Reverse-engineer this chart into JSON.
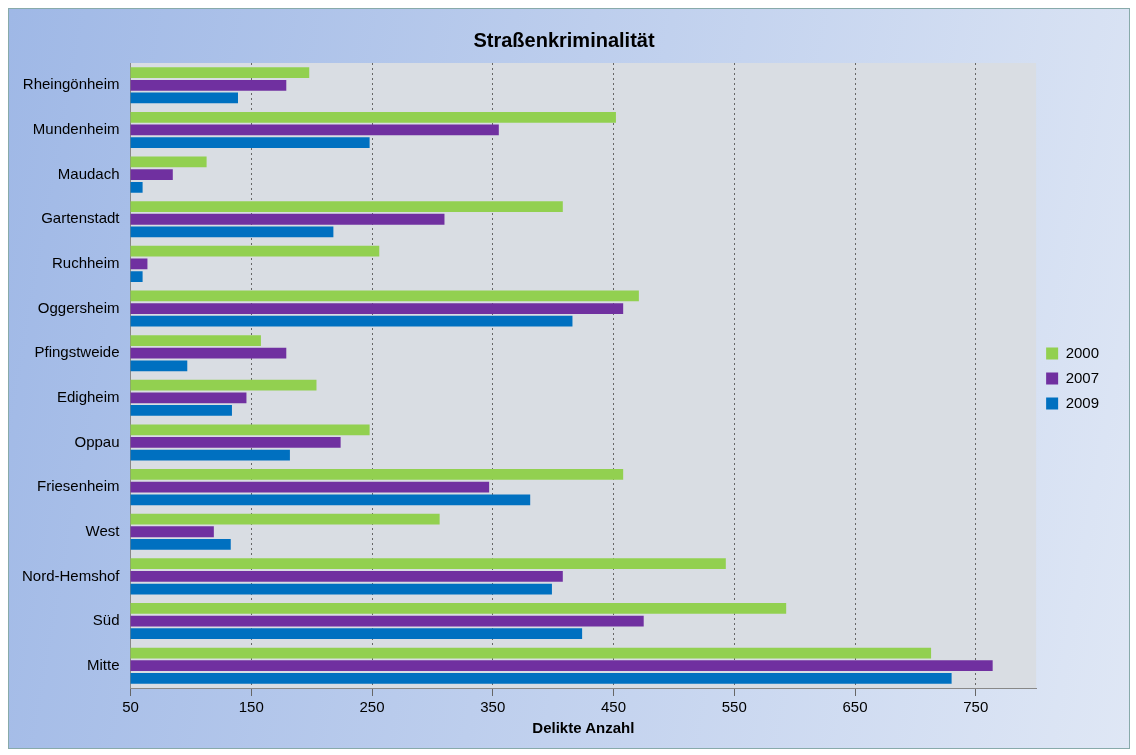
{
  "chart_data": {
    "type": "bar",
    "orientation": "horizontal",
    "title": "Straßenkriminalität",
    "xlabel": "Delikte Anzahl",
    "categories": [
      "Rheingönheim",
      "Mundenheim",
      "Maudach",
      "Gartenstadt",
      "Ruchheim",
      "Oggersheim",
      "Pfingstweide",
      "Edigheim",
      "Oppau",
      "Friesenheim",
      "West",
      "Nord-Hemshof",
      "Süd",
      "Mitte"
    ],
    "series": [
      {
        "name": "2000",
        "color": "#92d050",
        "values": [
          198,
          452,
          113,
          408,
          256,
          471,
          158,
          204,
          248,
          458,
          306,
          543,
          593,
          713
        ]
      },
      {
        "name": "2007",
        "color": "#7030a0",
        "values": [
          179,
          355,
          85,
          310,
          64,
          458,
          179,
          146,
          224,
          347,
          119,
          408,
          475,
          764
        ]
      },
      {
        "name": "2009",
        "color": "#0070c0",
        "values": [
          139,
          248,
          60,
          218,
          60,
          416,
          97,
          134,
          182,
          381,
          133,
          399,
          424,
          730
        ]
      }
    ],
    "xlim": [
      50,
      800
    ],
    "xticks": [
      50,
      150,
      250,
      350,
      450,
      550,
      650,
      750
    ],
    "grid": "x",
    "legend": "right"
  }
}
